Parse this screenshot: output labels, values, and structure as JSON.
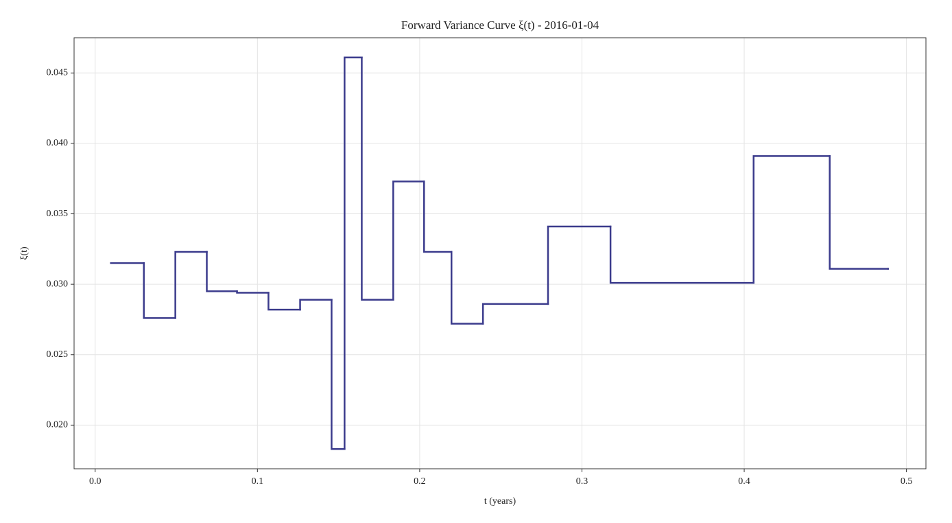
{
  "chart_data": {
    "type": "step",
    "step": "post",
    "title": "Forward Variance Curve ξ(t) - 2016-01-04",
    "xlabel": "t (years)",
    "ylabel": "ξ(t)",
    "x": [
      0.0097,
      0.03,
      0.0494,
      0.0688,
      0.0874,
      0.1068,
      0.1263,
      0.1457,
      0.1537,
      0.1643,
      0.1837,
      0.2027,
      0.2196,
      0.239,
      0.2791,
      0.3176,
      0.4058,
      0.4527,
      0.4886
    ],
    "series": [
      {
        "color": "#3b3b8c",
        "values": [
          0.0315,
          0.0276,
          0.0323,
          0.0295,
          0.0294,
          0.0282,
          0.0289,
          0.0183,
          0.0461,
          0.0289,
          0.0373,
          0.0323,
          0.0272,
          0.0286,
          0.0341,
          0.0301,
          0.0391,
          0.0311,
          0.0311
        ]
      }
    ],
    "xlim": [
      -0.013,
      0.512
    ],
    "ylim": [
      0.0169,
      0.0475
    ],
    "xticks": [
      {
        "value": 0,
        "label": "0.0"
      },
      0.1,
      0.2,
      0.3,
      0.4,
      0.5
    ],
    "yticks": [
      {
        "value": 0.02,
        "label": "0.020"
      },
      0.025,
      {
        "value": 0.03,
        "label": "0.030"
      },
      0.035,
      {
        "value": 0.04,
        "label": "0.040"
      },
      0.045
    ],
    "grid": true
  }
}
